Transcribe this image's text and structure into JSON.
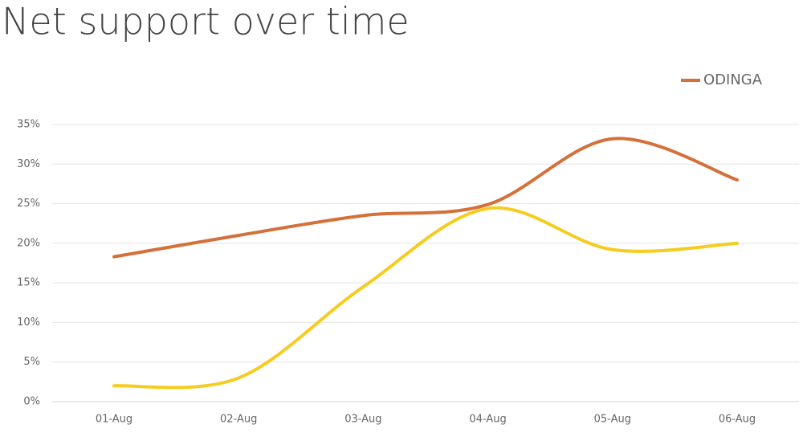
{
  "chart_data": {
    "type": "line",
    "title": "Net support over time",
    "categories": [
      "01-Aug",
      "02-Aug",
      "03-Aug",
      "04-Aug",
      "05-Aug",
      "06-Aug"
    ],
    "series": [
      {
        "name": "ODINGA",
        "color": "#d4703a",
        "values": [
          18.3,
          21,
          23.5,
          24.9,
          33.2,
          28
        ]
      },
      {
        "color": "#f5cc1f",
        "values": [
          2,
          3,
          14.5,
          24.4,
          19.2,
          20
        ]
      }
    ],
    "ylim": [
      0,
      35
    ],
    "yticks": [
      {
        "value": 0,
        "label": "0%"
      },
      {
        "value": 5,
        "label": "5%"
      },
      {
        "value": 10,
        "label": "10%"
      },
      {
        "value": 15,
        "label": "15%"
      },
      {
        "value": 20,
        "label": "20%"
      },
      {
        "value": 25,
        "label": "25%"
      },
      {
        "value": 30,
        "label": "30%"
      },
      {
        "value": 35,
        "label": "35%"
      }
    ],
    "grid": true,
    "legend": "top-right"
  }
}
